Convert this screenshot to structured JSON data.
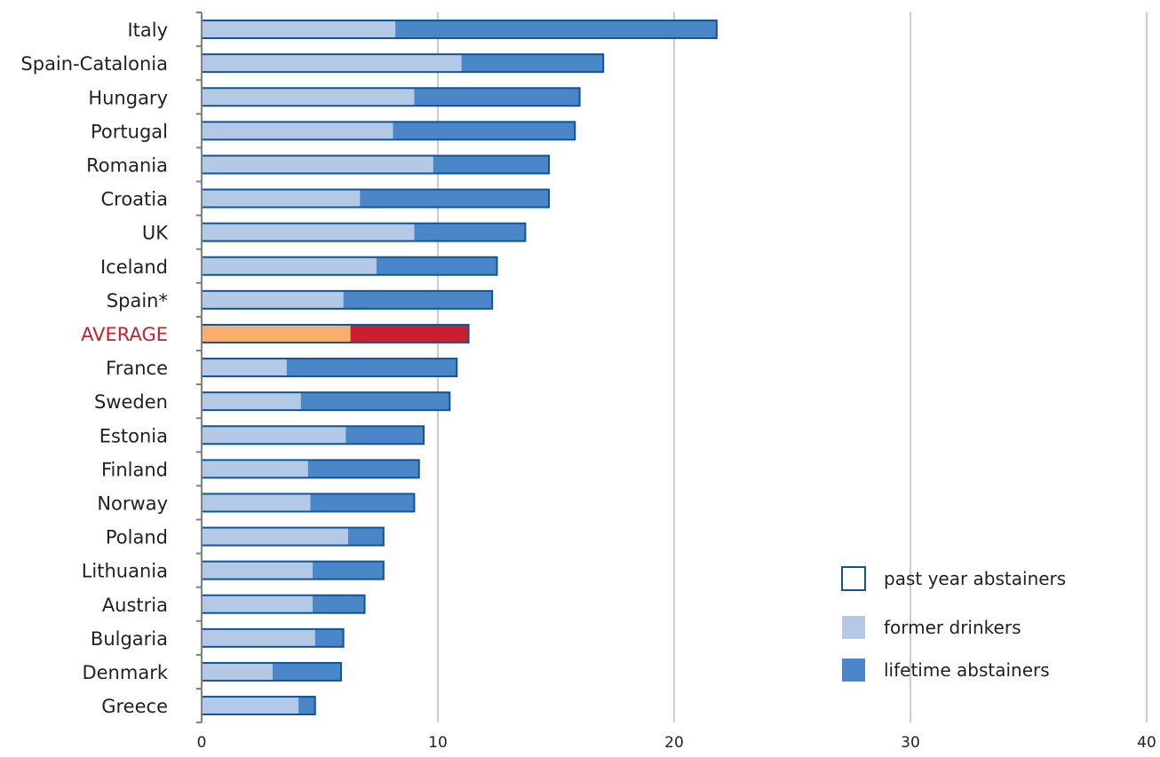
{
  "chart_data": {
    "type": "bar",
    "orientation": "horizontal",
    "stacked": true,
    "title": "",
    "xlabel": "",
    "ylabel": "",
    "xlim": [
      0,
      40
    ],
    "xticks": [
      "0",
      "10",
      "20",
      "30",
      "40"
    ],
    "grid": "vertical",
    "legend_position": "bottom-right",
    "categories": [
      "Italy",
      "Spain-Catalonia",
      "Hungary",
      "Portugal",
      "Romania",
      "Croatia",
      "UK",
      "Iceland",
      "Spain*",
      "AVERAGE",
      "France",
      "Sweden",
      "Estonia",
      "Finland",
      "Norway",
      "Poland",
      "Lithuania",
      "Austria",
      "Bulgaria",
      "Denmark",
      "Greece"
    ],
    "highlight_category": "AVERAGE",
    "series": [
      {
        "name": "former drinkers",
        "values": [
          8.2,
          11.0,
          9.0,
          8.1,
          9.8,
          6.7,
          9.0,
          7.4,
          6.0,
          6.3,
          3.6,
          4.2,
          6.1,
          4.5,
          4.6,
          6.2,
          4.7,
          4.7,
          4.8,
          3.0,
          4.1
        ]
      },
      {
        "name": "lifetime abstainers",
        "values": [
          13.6,
          6.0,
          7.0,
          7.7,
          4.9,
          8.0,
          4.7,
          5.1,
          6.3,
          5.0,
          7.2,
          6.3,
          3.3,
          4.7,
          4.4,
          1.5,
          3.0,
          2.2,
          1.2,
          2.9,
          0.7
        ]
      }
    ],
    "legend": {
      "outline_label": "past year abstainers",
      "light_label": "former drinkers",
      "dark_label": "lifetime abstainers"
    },
    "colors": {
      "former": "#b4c9e6",
      "lifetime": "#4a86c8",
      "outline": "#0f5596",
      "average_former": "#f9ae6b",
      "average_lifetime": "#c8202f",
      "grid": "#cccccc",
      "axis": "#808080",
      "highlight_text": "#c8202f",
      "text": "#231f20"
    }
  }
}
